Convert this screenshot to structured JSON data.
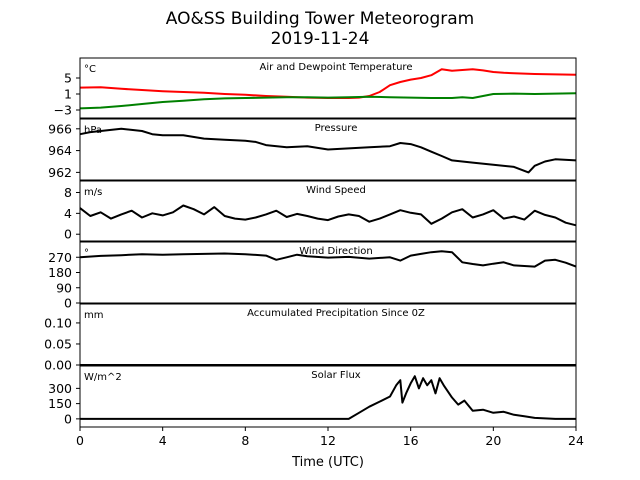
{
  "figure": {
    "title_line1": "AO&SS Building Tower Meteorogram",
    "title_line2": "2019-11-24",
    "xlabel": "Time (UTC)"
  },
  "chart_data": [
    {
      "id": "temp",
      "type": "line",
      "title": "Air and Dewpoint Temperature",
      "unit": "°C",
      "ylim": [
        -5,
        10
      ],
      "yticks": [
        -3,
        1,
        5
      ],
      "xlim": [
        0,
        24
      ],
      "series": [
        {
          "color": "#ff0000",
          "points": [
            [
              0,
              2.6
            ],
            [
              1,
              2.7
            ],
            [
              2,
              2.3
            ],
            [
              3,
              2.0
            ],
            [
              4,
              1.7
            ],
            [
              5,
              1.5
            ],
            [
              6,
              1.3
            ],
            [
              7,
              1.0
            ],
            [
              8,
              0.8
            ],
            [
              9,
              0.5
            ],
            [
              10,
              0.3
            ],
            [
              11,
              0.1
            ],
            [
              12,
              0.0
            ],
            [
              13,
              0.0
            ],
            [
              13.5,
              0.1
            ],
            [
              14,
              0.5
            ],
            [
              14.5,
              1.5
            ],
            [
              15,
              3.2
            ],
            [
              15.5,
              4.0
            ],
            [
              16,
              4.6
            ],
            [
              16.5,
              5.0
            ],
            [
              17,
              5.7
            ],
            [
              17.5,
              7.2
            ],
            [
              18,
              6.8
            ],
            [
              18.5,
              7.0
            ],
            [
              19,
              7.2
            ],
            [
              19.5,
              6.9
            ],
            [
              20,
              6.5
            ],
            [
              20.5,
              6.3
            ],
            [
              21,
              6.2
            ],
            [
              22,
              6.0
            ],
            [
              23,
              5.9
            ],
            [
              24,
              5.8
            ]
          ]
        },
        {
          "color": "#008000",
          "points": [
            [
              0,
              -2.6
            ],
            [
              1,
              -2.4
            ],
            [
              2,
              -2.0
            ],
            [
              3,
              -1.5
            ],
            [
              4,
              -1.0
            ],
            [
              5,
              -0.7
            ],
            [
              6,
              -0.3
            ],
            [
              7,
              -0.1
            ],
            [
              8,
              0.0
            ],
            [
              9,
              0.1
            ],
            [
              10,
              0.2
            ],
            [
              11,
              0.2
            ],
            [
              12,
              0.1
            ],
            [
              13,
              0.2
            ],
            [
              14,
              0.3
            ],
            [
              15,
              0.2
            ],
            [
              16,
              0.1
            ],
            [
              17,
              0.0
            ],
            [
              18,
              0.0
            ],
            [
              18.5,
              0.2
            ],
            [
              19,
              0.0
            ],
            [
              19.5,
              0.5
            ],
            [
              20,
              1.0
            ],
            [
              21,
              1.1
            ],
            [
              22,
              1.0
            ],
            [
              23,
              1.1
            ],
            [
              24,
              1.2
            ]
          ]
        }
      ]
    },
    {
      "id": "pressure",
      "type": "line",
      "title": "Pressure",
      "unit": "hPa",
      "ylim": [
        961.3,
        966.9
      ],
      "yticks": [
        962,
        964,
        966
      ],
      "xlim": [
        0,
        24
      ],
      "series": [
        {
          "color": "#000000",
          "points": [
            [
              0,
              965.5
            ],
            [
              0.5,
              965.7
            ],
            [
              1,
              965.8
            ],
            [
              1.5,
              965.9
            ],
            [
              2,
              966.0
            ],
            [
              2.5,
              965.9
            ],
            [
              3,
              965.8
            ],
            [
              3.5,
              965.5
            ],
            [
              4,
              965.4
            ],
            [
              5,
              965.4
            ],
            [
              6,
              965.1
            ],
            [
              7,
              965.0
            ],
            [
              8,
              964.9
            ],
            [
              8.5,
              964.8
            ],
            [
              9,
              964.5
            ],
            [
              10,
              964.3
            ],
            [
              11,
              964.4
            ],
            [
              12,
              964.1
            ],
            [
              13,
              964.2
            ],
            [
              14,
              964.3
            ],
            [
              15,
              964.4
            ],
            [
              15.5,
              964.7
            ],
            [
              16,
              964.6
            ],
            [
              16.5,
              964.3
            ],
            [
              17,
              963.9
            ],
            [
              17.5,
              963.5
            ],
            [
              18,
              963.1
            ],
            [
              19,
              962.9
            ],
            [
              20,
              962.7
            ],
            [
              21,
              962.5
            ],
            [
              21.7,
              962.0
            ],
            [
              22,
              962.6
            ],
            [
              22.5,
              963.0
            ],
            [
              23,
              963.2
            ],
            [
              24,
              963.1
            ]
          ]
        }
      ]
    },
    {
      "id": "wind_speed",
      "type": "line",
      "title": "Wind Speed",
      "unit": "m/s",
      "ylim": [
        -1.3,
        10.2
      ],
      "yticks": [
        0,
        4,
        8
      ],
      "xlim": [
        0,
        24
      ],
      "series": [
        {
          "color": "#000000",
          "points": [
            [
              0,
              5.0
            ],
            [
              0.5,
              3.5
            ],
            [
              1,
              4.2
            ],
            [
              1.5,
              3.0
            ],
            [
              2,
              3.8
            ],
            [
              2.5,
              4.5
            ],
            [
              3,
              3.2
            ],
            [
              3.5,
              4.0
            ],
            [
              4,
              3.6
            ],
            [
              4.5,
              4.2
            ],
            [
              5,
              5.5
            ],
            [
              5.5,
              4.8
            ],
            [
              6,
              3.8
            ],
            [
              6.5,
              5.2
            ],
            [
              7,
              3.5
            ],
            [
              7.5,
              3.0
            ],
            [
              8,
              2.8
            ],
            [
              8.5,
              3.2
            ],
            [
              9,
              3.8
            ],
            [
              9.5,
              4.5
            ],
            [
              10,
              3.3
            ],
            [
              10.5,
              3.9
            ],
            [
              11,
              3.5
            ],
            [
              11.5,
              3.0
            ],
            [
              12,
              2.7
            ],
            [
              12.5,
              3.4
            ],
            [
              13,
              3.8
            ],
            [
              13.5,
              3.5
            ],
            [
              14,
              2.4
            ],
            [
              14.5,
              3.0
            ],
            [
              15,
              3.8
            ],
            [
              15.5,
              4.6
            ],
            [
              16,
              4.1
            ],
            [
              16.5,
              3.8
            ],
            [
              17,
              2.0
            ],
            [
              17.5,
              3.0
            ],
            [
              18,
              4.2
            ],
            [
              18.5,
              4.8
            ],
            [
              19,
              3.2
            ],
            [
              19.5,
              3.8
            ],
            [
              20,
              4.6
            ],
            [
              20.5,
              3.0
            ],
            [
              21,
              3.4
            ],
            [
              21.5,
              2.8
            ],
            [
              22,
              4.5
            ],
            [
              22.5,
              3.7
            ],
            [
              23,
              3.2
            ],
            [
              23.5,
              2.2
            ],
            [
              24,
              1.7
            ]
          ]
        }
      ]
    },
    {
      "id": "wind_direction",
      "type": "line",
      "title": "Wind Direction",
      "unit": "°",
      "ylim": [
        0,
        360
      ],
      "yticks": [
        0,
        90,
        180,
        270
      ],
      "xlim": [
        0,
        24
      ],
      "series": [
        {
          "color": "#000000",
          "points": [
            [
              0,
              270
            ],
            [
              1,
              278
            ],
            [
              2,
              282
            ],
            [
              3,
              288
            ],
            [
              4,
              285
            ],
            [
              5,
              288
            ],
            [
              6,
              290
            ],
            [
              7,
              292
            ],
            [
              8,
              288
            ],
            [
              8.5,
              284
            ],
            [
              9,
              280
            ],
            [
              9.5,
              255
            ],
            [
              10,
              270
            ],
            [
              10.5,
              285
            ],
            [
              11,
              276
            ],
            [
              12,
              268
            ],
            [
              13,
              272
            ],
            [
              14,
              262
            ],
            [
              15,
              270
            ],
            [
              15.5,
              250
            ],
            [
              16,
              280
            ],
            [
              16.5,
              290
            ],
            [
              17,
              300
            ],
            [
              17.5,
              305
            ],
            [
              18,
              300
            ],
            [
              18.5,
              240
            ],
            [
              19,
              230
            ],
            [
              19.5,
              222
            ],
            [
              20,
              232
            ],
            [
              20.5,
              240
            ],
            [
              21,
              222
            ],
            [
              22,
              215
            ],
            [
              22.5,
              250
            ],
            [
              23,
              255
            ],
            [
              23.5,
              238
            ],
            [
              24,
              215
            ]
          ]
        }
      ]
    },
    {
      "id": "precip",
      "type": "line",
      "title": "Accumulated Precipitation Since 0Z",
      "unit": "mm",
      "ylim": [
        0,
        0.145
      ],
      "yticks": [
        0.0,
        0.05,
        0.1
      ],
      "ytick_labels": [
        "0.00",
        "0.05",
        "0.10"
      ],
      "xlim": [
        0,
        24
      ],
      "series": [
        {
          "color": "#000000",
          "points": [
            [
              0,
              0
            ],
            [
              24,
              0
            ]
          ]
        }
      ]
    },
    {
      "id": "solar",
      "type": "line",
      "title": "Solar Flux",
      "unit": "W/m^2",
      "ylim": [
        -80,
        520
      ],
      "yticks": [
        0,
        150,
        300
      ],
      "xlim": [
        0,
        24
      ],
      "xticks": [
        0,
        4,
        8,
        12,
        16,
        20,
        24
      ],
      "series": [
        {
          "color": "#000000",
          "points": [
            [
              0,
              0
            ],
            [
              13,
              0
            ],
            [
              13.5,
              60
            ],
            [
              14,
              120
            ],
            [
              14.5,
              170
            ],
            [
              15,
              220
            ],
            [
              15.3,
              330
            ],
            [
              15.5,
              380
            ],
            [
              15.6,
              160
            ],
            [
              15.8,
              260
            ],
            [
              16,
              350
            ],
            [
              16.2,
              420
            ],
            [
              16.4,
              300
            ],
            [
              16.6,
              400
            ],
            [
              16.8,
              330
            ],
            [
              17,
              380
            ],
            [
              17.2,
              250
            ],
            [
              17.4,
              400
            ],
            [
              17.6,
              330
            ],
            [
              18,
              210
            ],
            [
              18.3,
              140
            ],
            [
              18.6,
              180
            ],
            [
              19,
              80
            ],
            [
              19.5,
              90
            ],
            [
              20,
              60
            ],
            [
              20.5,
              70
            ],
            [
              21,
              40
            ],
            [
              21.5,
              25
            ],
            [
              22,
              10
            ],
            [
              22.5,
              5
            ],
            [
              23,
              0
            ],
            [
              24,
              0
            ]
          ]
        }
      ]
    }
  ]
}
